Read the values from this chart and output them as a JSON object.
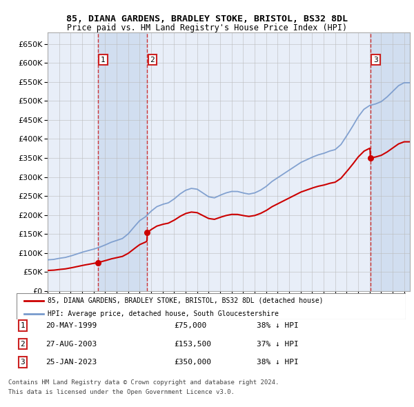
{
  "title": "85, DIANA GARDENS, BRADLEY STOKE, BRISTOL, BS32 8DL",
  "subtitle": "Price paid vs. HM Land Registry's House Price Index (HPI)",
  "ylim": [
    0,
    680000
  ],
  "yticks": [
    0,
    50000,
    100000,
    150000,
    200000,
    250000,
    300000,
    350000,
    400000,
    450000,
    500000,
    550000,
    600000,
    650000
  ],
  "xlim_start": 1995.0,
  "xlim_end": 2026.5,
  "background_color": "#ffffff",
  "chart_bg": "#e8eef8",
  "grid_color": "#bbbbbb",
  "hpi_color": "#7799cc",
  "price_color": "#cc0000",
  "transactions": [
    {
      "num": 1,
      "date_str": "20-MAY-1999",
      "year": 1999.38,
      "price": 75000,
      "pct": "38%"
    },
    {
      "num": 2,
      "date_str": "27-AUG-2003",
      "year": 2003.65,
      "price": 153500,
      "pct": "37%"
    },
    {
      "num": 3,
      "date_str": "25-JAN-2023",
      "year": 2023.07,
      "price": 350000,
      "pct": "38%"
    }
  ],
  "legend_line1": "85, DIANA GARDENS, BRADLEY STOKE, BRISTOL, BS32 8DL (detached house)",
  "legend_line2": "HPI: Average price, detached house, South Gloucestershire",
  "footnote1": "Contains HM Land Registry data © Crown copyright and database right 2024.",
  "footnote2": "This data is licensed under the Open Government Licence v3.0."
}
